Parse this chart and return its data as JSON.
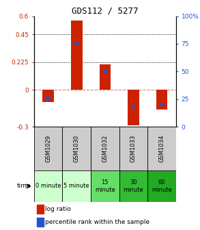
{
  "title": "GDS112 / 5277",
  "samples": [
    "GSM1029",
    "GSM1030",
    "GSM1032",
    "GSM1033",
    "GSM1034"
  ],
  "log_ratios": [
    -0.1,
    0.565,
    0.21,
    -0.285,
    -0.16
  ],
  "percentile_ranks": [
    26,
    75,
    50,
    18,
    20
  ],
  "time_labels": [
    "0 minute",
    "5 minute",
    "15\nminute",
    "30\nminute",
    "60\nminute"
  ],
  "time_colors": [
    "#ccffcc",
    "#ccffcc",
    "#66dd66",
    "#33bb33",
    "#22aa22"
  ],
  "ylim_left": [
    -0.3,
    0.6
  ],
  "ylim_right": [
    0,
    100
  ],
  "yticks_left": [
    -0.3,
    0,
    0.225,
    0.45,
    0.6
  ],
  "ytick_labels_left": [
    "-0.3",
    "0",
    "0.225",
    "0.45",
    "0.6"
  ],
  "yticks_right": [
    0,
    25,
    50,
    75,
    100
  ],
  "ytick_labels_right": [
    "0",
    "25",
    "50",
    "75",
    "100%"
  ],
  "hlines": [
    0.225,
    0.45
  ],
  "bar_color": "#cc2200",
  "pct_color": "#2255cc",
  "bar_width": 0.4,
  "pct_bar_width": 0.15,
  "pct_bar_height": 0.022,
  "sample_bg": "#cccccc",
  "title_fontsize": 9,
  "tick_fontsize": 6.5,
  "sample_fontsize": 6,
  "time_fontsize": 6,
  "legend_fontsize": 6.5
}
